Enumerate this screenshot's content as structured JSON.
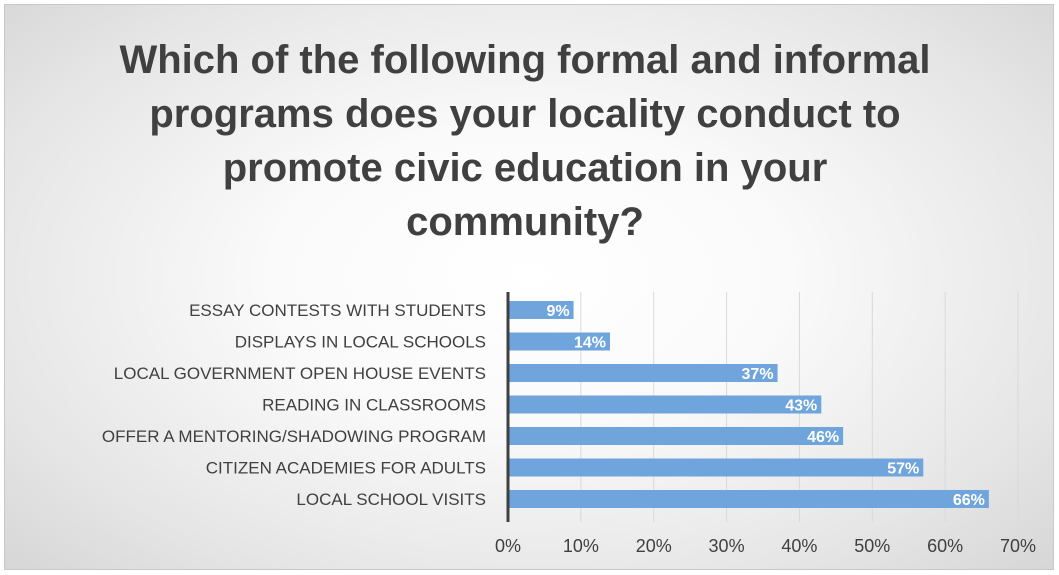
{
  "chart_data": {
    "type": "bar",
    "orientation": "horizontal",
    "title": "Which of the following formal and informal programs does your locality conduct to promote civic education in your community?",
    "categories": [
      "ESSAY CONTESTS WITH STUDENTS",
      "DISPLAYS IN LOCAL SCHOOLS",
      "LOCAL GOVERNMENT OPEN HOUSE EVENTS",
      "READING IN CLASSROOMS",
      "OFFER A MENTORING/SHADOWING PROGRAM",
      "CITIZEN ACADEMIES FOR ADULTS",
      "LOCAL SCHOOL VISITS"
    ],
    "values": [
      9,
      14,
      37,
      43,
      46,
      57,
      66
    ],
    "data_labels": [
      "9%",
      "14%",
      "37%",
      "43%",
      "46%",
      "57%",
      "66%"
    ],
    "xlim": [
      0,
      70
    ],
    "x_ticks": [
      "0%",
      "10%",
      "20%",
      "30%",
      "40%",
      "50%",
      "60%",
      "70%"
    ],
    "xlabel": "",
    "ylabel": "",
    "grid": true,
    "bar_color": "#6fa4dc",
    "gridline_color": "#d9d9d9",
    "axis_color": "#404040",
    "title_color": "#404040"
  }
}
